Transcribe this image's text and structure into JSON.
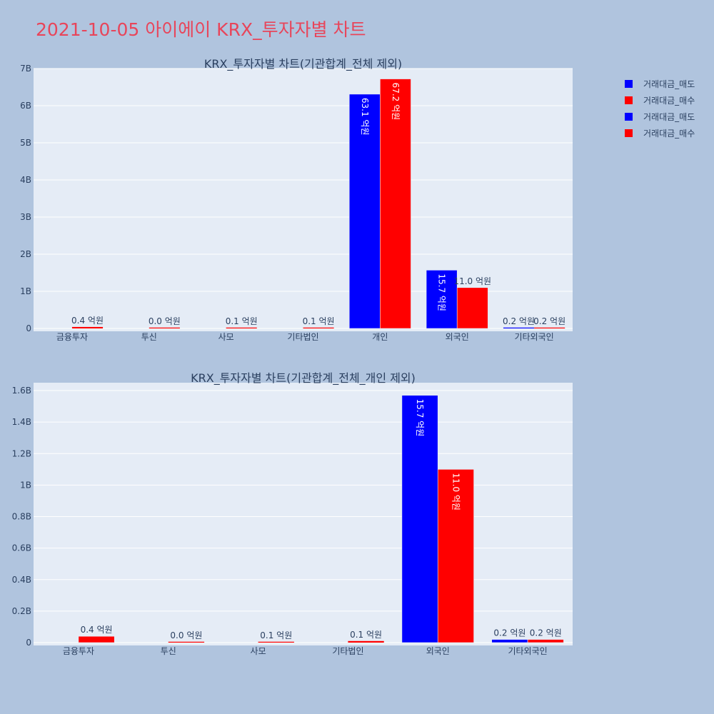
{
  "title": "2021-10-05 아이에이 KRX_투자자별 차트",
  "legend": [
    {
      "label": "거래대금_매도",
      "color": "#0000ff"
    },
    {
      "label": "거래대금_매수",
      "color": "#ff0000"
    },
    {
      "label": "거래대금_매도",
      "color": "#0000ff"
    },
    {
      "label": "거래대금_매수",
      "color": "#ff0000"
    }
  ],
  "chart_data": [
    {
      "type": "bar",
      "title": "KRX_투자자별 차트(기관합계_전체 제외)",
      "categories": [
        "금융투자",
        "투신",
        "사모",
        "기타법인",
        "개인",
        "외국인",
        "기타외국인"
      ],
      "ylim": [
        0,
        7000000000
      ],
      "yticks": [
        0,
        1000000000,
        2000000000,
        3000000000,
        4000000000,
        5000000000,
        6000000000,
        7000000000
      ],
      "yticklabels": [
        "0",
        "1B",
        "2B",
        "3B",
        "4B",
        "5B",
        "6B",
        "7B"
      ],
      "series": [
        {
          "name": "거래대금_매도",
          "color": "#0000ff",
          "values": [
            0,
            0,
            0,
            0,
            6310000000,
            1570000000,
            20000000
          ],
          "labels": [
            "",
            "",
            "",
            "",
            "63.1 억원",
            "15.7 억원",
            "0.2 억원"
          ]
        },
        {
          "name": "거래대금_매수",
          "color": "#ff0000",
          "values": [
            40000000,
            2000000,
            5000000,
            10000000,
            6720000000,
            1100000000,
            20000000
          ],
          "labels": [
            "0.4 억원",
            "0.0 억원",
            "0.1 억원",
            "0.1 억원",
            "67.2 억원",
            "11.0 억원",
            "0.2 억원"
          ]
        }
      ]
    },
    {
      "type": "bar",
      "title": "KRX_투자자별 차트(기관합계_전체_개인 제외)",
      "categories": [
        "금융투자",
        "투신",
        "사모",
        "기타법인",
        "외국인",
        "기타외국인"
      ],
      "ylim": [
        0,
        1650000000
      ],
      "yticks": [
        0,
        200000000,
        400000000,
        600000000,
        800000000,
        1000000000,
        1200000000,
        1400000000,
        1600000000
      ],
      "yticklabels": [
        "0",
        "0.2B",
        "0.4B",
        "0.6B",
        "0.8B",
        "1B",
        "1.2B",
        "1.4B",
        "1.6B"
      ],
      "series": [
        {
          "name": "거래대금_매도",
          "color": "#0000ff",
          "values": [
            0,
            0,
            0,
            0,
            1570000000,
            20000000
          ],
          "labels": [
            "",
            "",
            "",
            "",
            "15.7 억원",
            "0.2 억원"
          ]
        },
        {
          "name": "거래대금_매수",
          "color": "#ff0000",
          "values": [
            40000000,
            2000000,
            5000000,
            10000000,
            1100000000,
            20000000
          ],
          "labels": [
            "0.4 억원",
            "0.0 억원",
            "0.1 억원",
            "0.1 억원",
            "11.0 억원",
            "0.2 억원"
          ]
        }
      ]
    }
  ]
}
